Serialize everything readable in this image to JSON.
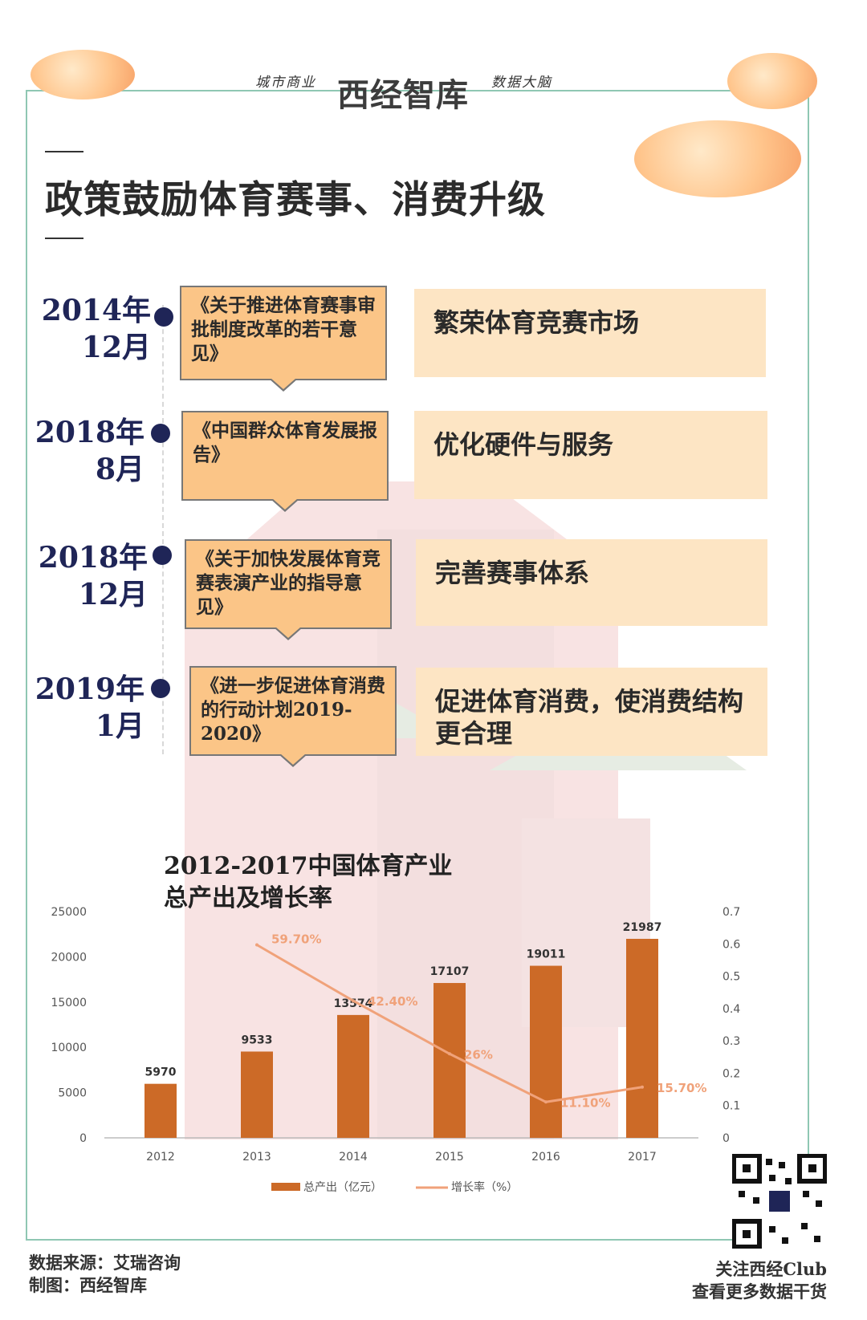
{
  "header": {
    "brand_left": "城市商业",
    "brand_logo": "西经智库",
    "brand_right": "数据大脑"
  },
  "title": "政策鼓励体育赛事、消费升级",
  "timeline": [
    {
      "date_year": "2014年",
      "date_month": "12月",
      "document": "《关于推进体育赛事审批制度改革的若干意见》",
      "goal": "繁荣体育竞赛市场"
    },
    {
      "date_year": "2018年",
      "date_month": "8月",
      "document": "《中国群众体育发展报告》",
      "goal": "优化硬件与服务"
    },
    {
      "date_year": "2018年",
      "date_month": "12月",
      "document": "《关于加快发展体育竞赛表演产业的指导意见》",
      "goal": "完善赛事体系"
    },
    {
      "date_year": "2019年",
      "date_month": "1月",
      "document": "《进一步促进体育消费的行动计划2019-2020》",
      "goal": "促进体育消费，使消费结构更合理"
    }
  ],
  "chart_data": {
    "type": "bar",
    "title": "2012-2017中国体育产业总产出及增长率",
    "categories": [
      "2012",
      "2013",
      "2014",
      "2015",
      "2016",
      "2017"
    ],
    "series": [
      {
        "name": "总产出（亿元）",
        "type": "bar",
        "axis": "left",
        "values": [
          5970,
          9533,
          13574,
          17107,
          19011,
          21987
        ]
      },
      {
        "name": "增长率（%）",
        "type": "line",
        "axis": "right",
        "values": [
          null,
          0.597,
          0.424,
          0.26,
          0.111,
          0.157
        ],
        "labels": [
          "",
          "59.70%",
          "42.40%",
          "26%",
          "11.10%",
          "15.70%"
        ]
      }
    ],
    "y_left": {
      "min": 0,
      "max": 25000,
      "ticks": [
        0,
        5000,
        10000,
        15000,
        20000,
        25000
      ]
    },
    "y_right": {
      "min": 0,
      "max": 0.7,
      "ticks": [
        "0",
        "0.1",
        "0.2",
        "0.3",
        "0.4",
        "0.5",
        "0.6",
        "0.7"
      ]
    },
    "legend_position": "bottom",
    "colors": {
      "bar": "#cc6a27",
      "line": "#f0a27a"
    }
  },
  "footer": {
    "source": "数据来源：艾瑞咨询",
    "maker": "制图：西经智库",
    "follow": "关注西经Club",
    "more": "查看更多数据干货"
  },
  "colors": {
    "frame": "#8fc7b3",
    "date": "#1f2557",
    "doc_box": "#fbc587",
    "goal_box": "#fde5c4"
  }
}
